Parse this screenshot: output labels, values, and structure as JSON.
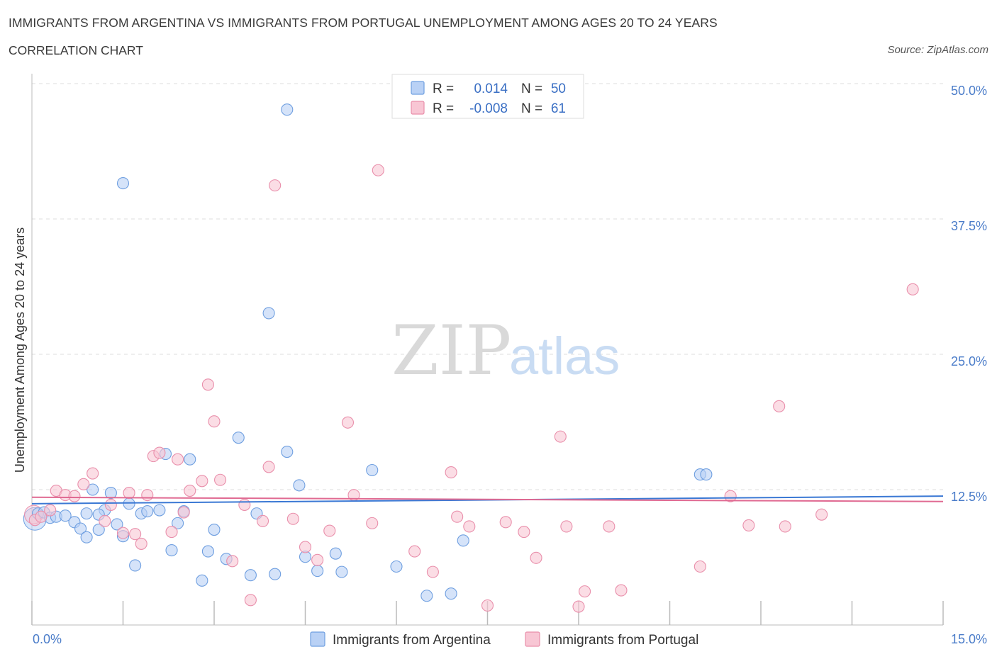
{
  "header": {
    "title": "IMMIGRANTS FROM ARGENTINA VS IMMIGRANTS FROM PORTUGAL UNEMPLOYMENT AMONG AGES 20 TO 24 YEARS",
    "subtitle": "CORRELATION CHART",
    "source": "Source: ZipAtlas.com"
  },
  "watermark": {
    "zip": "ZIP",
    "atlas": "atlas"
  },
  "stats_legend": [
    {
      "r_label": "R =",
      "r_value": "0.014",
      "n_label": "N =",
      "n_value": "50",
      "color": "#6f9fe0",
      "fill": "#b9d1f5"
    },
    {
      "r_label": "R =",
      "r_value": "-0.008",
      "n_label": "N =",
      "n_value": "61",
      "color": "#e98fab",
      "fill": "#f8c6d4"
    }
  ],
  "bottom_legend": [
    {
      "label": "Immigrants from Argentina",
      "color": "#6f9fe0",
      "fill": "#b9d1f5"
    },
    {
      "label": "Immigrants from Portugal",
      "color": "#e98fab",
      "fill": "#f8c6d4"
    }
  ],
  "chart_data": {
    "type": "scatter",
    "title": "IMMIGRANTS FROM ARGENTINA VS IMMIGRANTS FROM PORTUGAL UNEMPLOYMENT AMONG AGES 20 TO 24 YEARS",
    "subtitle": "CORRELATION CHART",
    "xlabel": "",
    "ylabel": "Unemployment Among Ages 20 to 24 years",
    "xlim": [
      0,
      15
    ],
    "ylim": [
      0,
      50
    ],
    "x_tick_labels": [
      "0.0%",
      "15.0%"
    ],
    "y_tick_labels": [
      "12.5%",
      "25.0%",
      "37.5%",
      "50.0%"
    ],
    "y_ticks": [
      12.5,
      25,
      37.5,
      50
    ],
    "grid": true,
    "legend_position": "top-center",
    "series": [
      {
        "name": "Immigrants from Argentina",
        "color": "#6f9fe0",
        "fill": "#b9d1f5",
        "trend": {
          "x": [
            0,
            15
          ],
          "y": [
            11.2,
            11.9
          ]
        },
        "points": [
          [
            0.1,
            10.3
          ],
          [
            0.2,
            10.4
          ],
          [
            0.3,
            9.9
          ],
          [
            0.4,
            10.0
          ],
          [
            0.55,
            10.1
          ],
          [
            0.7,
            9.5
          ],
          [
            0.8,
            8.9
          ],
          [
            0.9,
            8.1
          ],
          [
            1.0,
            12.5
          ],
          [
            1.1,
            8.8
          ],
          [
            1.2,
            10.6
          ],
          [
            1.3,
            12.2
          ],
          [
            1.4,
            9.3
          ],
          [
            1.5,
            8.2
          ],
          [
            1.6,
            11.2
          ],
          [
            1.7,
            5.5
          ],
          [
            1.8,
            10.3
          ],
          [
            1.9,
            10.5
          ],
          [
            2.1,
            10.6
          ],
          [
            2.2,
            15.8
          ],
          [
            2.3,
            6.9
          ],
          [
            2.4,
            9.4
          ],
          [
            2.5,
            10.5
          ],
          [
            2.6,
            15.3
          ],
          [
            2.8,
            4.1
          ],
          [
            2.9,
            6.8
          ],
          [
            3.0,
            8.8
          ],
          [
            3.2,
            6.1
          ],
          [
            3.4,
            17.3
          ],
          [
            3.6,
            4.6
          ],
          [
            3.7,
            10.3
          ],
          [
            3.9,
            28.8
          ],
          [
            4.0,
            4.7
          ],
          [
            4.2,
            16.0
          ],
          [
            4.4,
            12.9
          ],
          [
            4.5,
            6.3
          ],
          [
            4.7,
            5.0
          ],
          [
            5.0,
            6.6
          ],
          [
            5.1,
            4.9
          ],
          [
            5.6,
            14.3
          ],
          [
            6.0,
            5.4
          ],
          [
            6.5,
            2.7
          ],
          [
            6.9,
            2.9
          ],
          [
            7.1,
            7.8
          ],
          [
            1.5,
            40.8
          ],
          [
            4.2,
            47.6
          ],
          [
            11.0,
            13.9
          ],
          [
            11.1,
            13.9
          ],
          [
            1.1,
            10.2
          ],
          [
            0.9,
            10.3
          ]
        ]
      },
      {
        "name": "Immigrants from Portugal",
        "color": "#e98fab",
        "fill": "#f8c6d4",
        "trend": {
          "x": [
            0,
            15
          ],
          "y": [
            11.8,
            11.4
          ]
        },
        "points": [
          [
            0.05,
            9.7
          ],
          [
            0.15,
            10.0
          ],
          [
            0.3,
            10.6
          ],
          [
            0.4,
            12.4
          ],
          [
            0.55,
            12.0
          ],
          [
            0.7,
            11.9
          ],
          [
            0.85,
            13.0
          ],
          [
            1.0,
            14.0
          ],
          [
            1.2,
            9.6
          ],
          [
            1.3,
            11.1
          ],
          [
            1.5,
            8.5
          ],
          [
            1.6,
            12.2
          ],
          [
            1.7,
            8.4
          ],
          [
            1.8,
            7.5
          ],
          [
            1.9,
            12.0
          ],
          [
            2.0,
            15.6
          ],
          [
            2.1,
            15.9
          ],
          [
            2.3,
            8.6
          ],
          [
            2.4,
            15.3
          ],
          [
            2.5,
            10.4
          ],
          [
            2.6,
            12.4
          ],
          [
            2.8,
            13.3
          ],
          [
            2.9,
            22.2
          ],
          [
            3.0,
            18.8
          ],
          [
            3.1,
            13.4
          ],
          [
            3.3,
            5.9
          ],
          [
            3.5,
            11.1
          ],
          [
            3.6,
            2.3
          ],
          [
            3.8,
            9.6
          ],
          [
            3.9,
            14.6
          ],
          [
            4.0,
            40.6
          ],
          [
            4.3,
            9.8
          ],
          [
            4.5,
            7.2
          ],
          [
            4.7,
            6.0
          ],
          [
            4.9,
            8.7
          ],
          [
            5.2,
            18.7
          ],
          [
            5.3,
            12.0
          ],
          [
            5.6,
            9.4
          ],
          [
            5.7,
            42.0
          ],
          [
            6.3,
            6.8
          ],
          [
            6.6,
            4.9
          ],
          [
            6.9,
            14.1
          ],
          [
            7.0,
            10.0
          ],
          [
            7.2,
            9.1
          ],
          [
            7.5,
            1.8
          ],
          [
            7.8,
            9.5
          ],
          [
            8.1,
            8.6
          ],
          [
            8.3,
            6.2
          ],
          [
            8.7,
            17.4
          ],
          [
            8.8,
            9.1
          ],
          [
            9.0,
            1.7
          ],
          [
            9.1,
            3.1
          ],
          [
            9.5,
            9.1
          ],
          [
            9.7,
            3.2
          ],
          [
            11.0,
            5.4
          ],
          [
            11.5,
            11.9
          ],
          [
            11.8,
            9.2
          ],
          [
            12.3,
            20.2
          ],
          [
            12.4,
            9.1
          ],
          [
            13.0,
            10.2
          ],
          [
            14.5,
            31.0
          ]
        ]
      }
    ]
  }
}
